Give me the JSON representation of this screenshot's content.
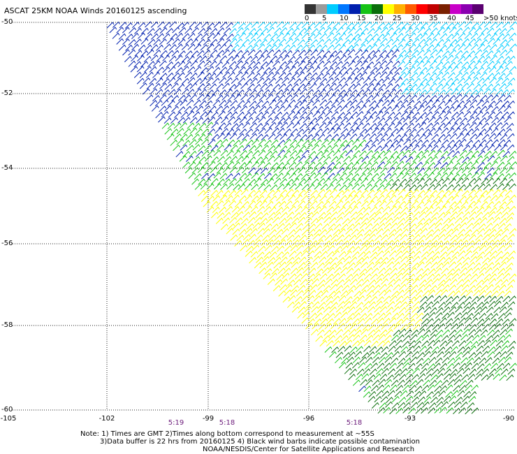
{
  "title": "ASCAT 25KM NOAA Winds 20160125 ascending",
  "legend": {
    "labels": [
      "0",
      "5",
      "10",
      "15",
      "20",
      "25",
      "30",
      "35",
      "40",
      "45",
      ">50 knots"
    ],
    "colors": [
      "#333333",
      "#9a9a9a",
      "#00ccff",
      "#0077ff",
      "#001fae",
      "#16c316",
      "#0b6e0b",
      "#ffff00",
      "#ffb000",
      "#ff5a00",
      "#ff0000",
      "#c00000",
      "#7a2000",
      "#c800c8",
      "#8a00b0",
      "#5a0070"
    ]
  },
  "axes": {
    "lat_labels": [
      "-50",
      "-52",
      "-54",
      "-56",
      "-58",
      "-60"
    ],
    "lon_labels": [
      "-105",
      "-102",
      "-99",
      "-96",
      "-93",
      "-90"
    ]
  },
  "times": [
    "5:19",
    "5:18",
    "5:18"
  ],
  "notes": {
    "line1": "Note: 1) Times are GMT 2)Times along bottom correspond to measurement at ~55S",
    "line2": "3)Data buffer is 22 hrs from 20160125 4) Black wind barbs indicate possible contamination",
    "line3": "NOAA/NESDIS/Center for Satellite Applications and Research"
  },
  "wind_zones": [
    {
      "zone": "north",
      "color": "#00ccff",
      "speed_kt": "10-15"
    },
    {
      "zone": "upper-middle",
      "color": "#001fae",
      "speed_kt": "15-20"
    },
    {
      "zone": "middle",
      "color": "#16c316",
      "speed_kt": "20-25"
    },
    {
      "zone": "south-middle",
      "color": "#ffff00",
      "speed_kt": "25-30"
    },
    {
      "zone": "south-east",
      "color": "#0b6e0b",
      "speed_kt": "20-25"
    }
  ]
}
